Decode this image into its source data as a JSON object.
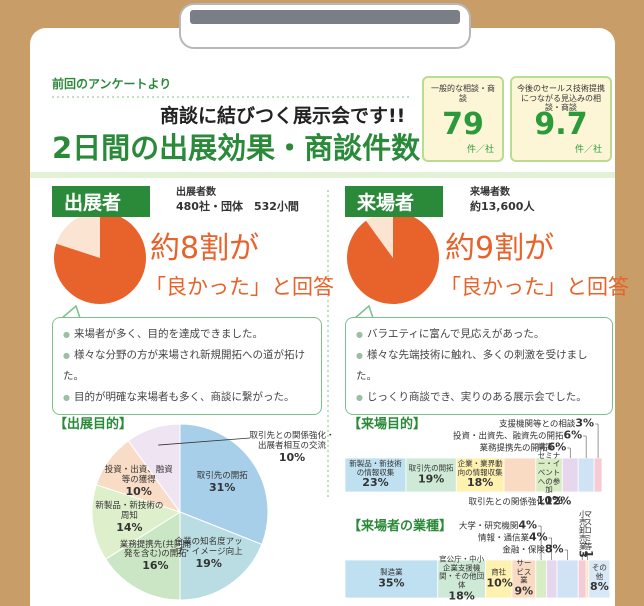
{
  "header": {
    "source": "前回のアンケートより",
    "subtitle": "商談に結びつく展示会です!!",
    "title": "2日間の出展効果・商談件数"
  },
  "stats": [
    {
      "label": "一般的な相談・商談",
      "value": 79,
      "unit": "件／社"
    },
    {
      "label": "今後のセールス技術提携につながる見込みの相談・商談",
      "value": 9.7,
      "unit": "件／社"
    }
  ],
  "exhibitors": {
    "heading": "出展者",
    "count_label": "出展者数",
    "count": "480社・団体　532小間",
    "satisfaction": {
      "type": "pie",
      "value": 80,
      "color": "#e8632b",
      "headline": "約8割が",
      "caption": "「良かった」と回答"
    },
    "comments": [
      "来場者が多く、目的を達成できました。",
      "様々な分野の方が来場され新規開拓への道が拓けた。",
      "目的が明確な来場者も多く、商談に繋がった。"
    ],
    "purpose": {
      "title": "【出展目的】",
      "chart": {
        "type": "pie",
        "categories": [
          "取引先の開拓",
          "企業の知名度アップ・イメージ向上",
          "業務提携先(共同開発を含む)の開拓",
          "新製品・新技術の周知",
          "投資・出資、融資等の獲得",
          "取引先との関係強化・出展者相互の交流"
        ],
        "values": [
          31,
          19,
          16,
          14,
          10,
          10
        ],
        "value_labels": [
          "31%",
          "19%",
          "16%",
          "14%",
          "10%",
          "10%"
        ],
        "colors": [
          "#a8cfe9",
          "#b9dde2",
          "#cbe6c4",
          "#deefcb",
          "#f8dcc6",
          "#efe4f1"
        ]
      }
    }
  },
  "visitors": {
    "heading": "来場者",
    "count_label": "来場者数",
    "count": "約13,600人",
    "satisfaction": {
      "type": "pie",
      "value": 90,
      "color": "#e8632b",
      "headline": "約9割が",
      "caption": "「良かった」と回答"
    },
    "comments": [
      "バラエティに富んで見応えがあった。",
      "様々な先端技術に触れ、多くの刺激を受けました。",
      "じっくり商談でき、実りのある展示会でした。"
    ],
    "purpose": {
      "title": "【来場目的】",
      "chart": {
        "type": "stacked-bar",
        "xlim": [
          0,
          100
        ],
        "categories": [
          "新製品・新技術の情報収集",
          "取引先の開拓",
          "企業・業界動向の情報収集",
          "取引先との関係強化",
          "講演・セミナー・イベントへの参加",
          "業務提携先の開拓",
          "投資・出資先、融資先の開拓",
          "支援機関等との相談"
        ],
        "values": [
          23,
          19,
          18,
          12,
          10,
          6,
          6,
          3
        ],
        "value_labels": [
          "23%",
          "19%",
          "18%",
          "12%",
          "10%",
          "6%",
          "6%",
          "3%"
        ],
        "colors": [
          "#bfe0f0",
          "#cfe9d7",
          "#fff1b0",
          "#f9dac2",
          "#d8edc4",
          "#e6d7ef",
          "#cfe3f5",
          "#f6cbd6"
        ]
      }
    },
    "industry": {
      "title": "【来場者の業種】",
      "chart": {
        "type": "stacked-bar",
        "xlim": [
          0,
          100
        ],
        "categories": [
          "製造業",
          "官公庁・中小企業支援機関・その他団体",
          "商社",
          "サービス業",
          "大学・研究機関",
          "情報・通信業",
          "金融・保険",
          "小売卸売業",
          "マスコミ等",
          "その他"
        ],
        "values": [
          35,
          18,
          10,
          9,
          4,
          4,
          8,
          3,
          1,
          8
        ],
        "value_labels": [
          "35%",
          "18%",
          "10%",
          "9%",
          "4%",
          "4%",
          "8%",
          "3",
          "1",
          "8%"
        ],
        "colors": [
          "#bfe0f0",
          "#cfe9d7",
          "#fff1b0",
          "#f9dac2",
          "#d8edc4",
          "#e6d7ef",
          "#cfe3f5",
          "#f6cbd6",
          "#fde3b5",
          "#d9e8f7"
        ]
      }
    }
  }
}
